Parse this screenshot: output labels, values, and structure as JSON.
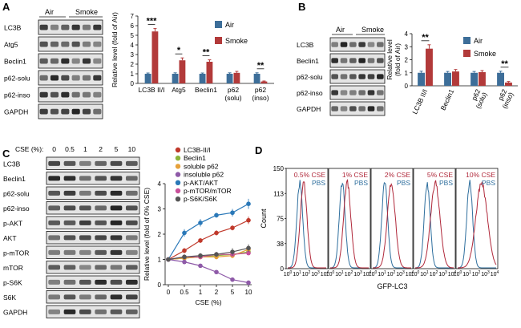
{
  "panel_letters": {
    "a": "A",
    "b": "B",
    "c": "C",
    "d": "D"
  },
  "colors": {
    "air": "#3d6e99",
    "smoke": "#b23a3a",
    "pbs": "#2f6f9e",
    "cse": "#b0283a",
    "lc3b": "#c0392b",
    "beclin1": "#8cb33a",
    "soluble_p62": "#e6a13a",
    "insoluble_p62": "#8e5aa8",
    "p_akt": "#2a78b8",
    "p_mtor": "#c8509a",
    "p_s6k": "#555555"
  },
  "panelA": {
    "blot": {
      "headers": [
        "Air",
        "Smoke"
      ],
      "labels": [
        "LC3B",
        "Atg5",
        "Beclin1",
        "p62-solu",
        "p62-inso",
        "GAPDH"
      ]
    },
    "chart_data": {
      "type": "bar",
      "categories": [
        "LC3B II/I",
        "Atg5",
        "Beclin1",
        "p62\n(solu)",
        "p62\n(inso)"
      ],
      "series": [
        {
          "name": "Air",
          "values": [
            1.0,
            1.0,
            1.0,
            1.0,
            1.0
          ],
          "errors": [
            0.08,
            0.1,
            0.08,
            0.1,
            0.1
          ]
        },
        {
          "name": "Smoke",
          "values": [
            5.4,
            2.4,
            2.25,
            1.1,
            0.2
          ],
          "errors": [
            0.3,
            0.25,
            0.2,
            0.15,
            0.05
          ]
        }
      ],
      "ylabel": "Relative level (fold of Air)",
      "ylim": [
        0,
        7
      ],
      "yticks": [
        0,
        1,
        2,
        3,
        4,
        5,
        6,
        7
      ],
      "significance": [
        "***",
        "*",
        "**",
        "",
        "**"
      ],
      "legend": [
        "Air",
        "Smoke"
      ]
    }
  },
  "panelB": {
    "blot": {
      "headers": [
        "Air",
        "Smoke"
      ],
      "labels": [
        "LC3B",
        "Beclin1",
        "p62-solu",
        "p62-inso",
        "GAPDH"
      ]
    },
    "chart_data": {
      "type": "bar",
      "categories": [
        "LC3B II/I",
        "Beclin1",
        "p62\n(solu)",
        "p62\n(inso)"
      ],
      "series": [
        {
          "name": "Air",
          "values": [
            1.0,
            1.0,
            1.0,
            1.0
          ],
          "errors": [
            0.12,
            0.1,
            0.1,
            0.12
          ]
        },
        {
          "name": "Smoke",
          "values": [
            2.85,
            1.1,
            1.05,
            0.25
          ],
          "errors": [
            0.3,
            0.15,
            0.12,
            0.08
          ]
        }
      ],
      "ylabel": "Relative level\n(fold of Air)",
      "ylim": [
        0,
        4
      ],
      "yticks": [
        0,
        1,
        2,
        3,
        4
      ],
      "significance": [
        "**",
        "",
        "",
        "**"
      ],
      "legend": [
        "Air",
        "Smoke"
      ]
    }
  },
  "panelC": {
    "blot": {
      "cse_label": "CSE (%):",
      "cse_values": [
        "0",
        "0.5",
        "1",
        "2",
        "5",
        "10"
      ],
      "labels": [
        "LC3B",
        "Beclin1",
        "p62-solu",
        "p62-inso",
        "p-AKT",
        "AKT",
        "p-mTOR",
        "mTOR",
        "p-S6K",
        "S6K",
        "GAPDH"
      ]
    },
    "chart_data": {
      "type": "line",
      "x_labels": [
        "0",
        "0.5",
        "1",
        "2",
        "5",
        "10"
      ],
      "series": [
        {
          "name": "LC3B-II/I",
          "color": "#c0392b",
          "values": [
            1.0,
            1.35,
            1.75,
            2.05,
            2.25,
            2.55
          ],
          "errors": [
            0.05,
            0.1,
            0.1,
            0.1,
            0.1,
            0.15
          ]
        },
        {
          "name": "Beclin1",
          "color": "#8cb33a",
          "values": [
            1.0,
            1.05,
            1.1,
            1.15,
            1.2,
            1.3
          ],
          "errors": [
            0.05,
            0.1,
            0.1,
            0.1,
            0.1,
            0.1
          ]
        },
        {
          "name": "soluble p62",
          "color": "#e6a13a",
          "values": [
            1.0,
            1.05,
            1.1,
            1.1,
            1.15,
            1.4
          ],
          "errors": [
            0.05,
            0.1,
            0.1,
            0.1,
            0.1,
            0.15
          ]
        },
        {
          "name": "insoluble p62",
          "color": "#8e5aa8",
          "values": [
            1.0,
            0.9,
            0.75,
            0.5,
            0.2,
            0.08
          ],
          "errors": [
            0.05,
            0.05,
            0.05,
            0.05,
            0.05,
            0.03
          ]
        },
        {
          "name": "p-AKT/AKT",
          "color": "#2a78b8",
          "values": [
            1.0,
            2.05,
            2.45,
            2.75,
            2.85,
            3.2
          ],
          "errors": [
            0.05,
            0.15,
            0.15,
            0.1,
            0.15,
            0.2
          ]
        },
        {
          "name": "p-mTOR/mTOR",
          "color": "#c8509a",
          "values": [
            1.0,
            1.1,
            1.1,
            1.2,
            1.2,
            1.25
          ],
          "errors": [
            0.05,
            0.05,
            0.05,
            0.05,
            0.05,
            0.05
          ]
        },
        {
          "name": "p-S6K/S6K",
          "color": "#555555",
          "values": [
            1.0,
            1.1,
            1.15,
            1.2,
            1.3,
            1.45
          ],
          "errors": [
            0.05,
            0.1,
            0.1,
            0.1,
            0.15,
            0.15
          ]
        }
      ],
      "xlabel": "CSE (%)",
      "ylabel": "Relative level (fold of 0% CSE)",
      "ylim": [
        0,
        4
      ],
      "yticks": [
        0,
        1,
        2,
        3,
        4
      ]
    }
  },
  "panelD": {
    "chart_data": {
      "type": "histogram-overlay",
      "panels": [
        {
          "label": "0.5% CSE",
          "ref": "PBS"
        },
        {
          "label": "1% CSE",
          "ref": "PBS"
        },
        {
          "label": "2% CSE",
          "ref": "PBS"
        },
        {
          "label": "5% CSE",
          "ref": "PBS"
        },
        {
          "label": "10% CSE",
          "ref": "PBS"
        }
      ],
      "yticks": [
        "0",
        "38",
        "75",
        "113",
        "150"
      ],
      "ylabel": "Count",
      "xlabel": "GFP-LC3",
      "xtick_base": "10",
      "xtick_exps": [
        "0",
        "1",
        "2",
        "3",
        "4"
      ]
    }
  }
}
